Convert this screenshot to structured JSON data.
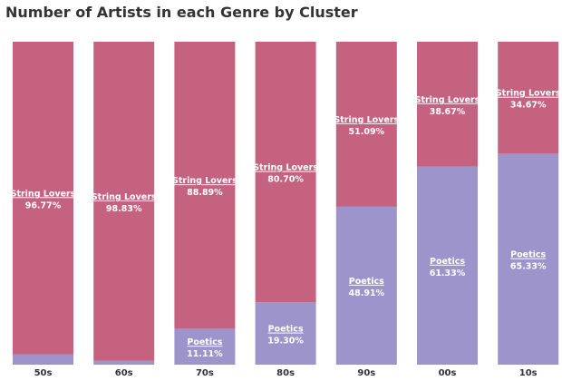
{
  "chart_data": {
    "type": "bar",
    "stacked": true,
    "normalized": true,
    "title": "Number of Artists in each Genre by Cluster",
    "xlabel": "",
    "ylabel": "",
    "ylim": [
      0,
      100
    ],
    "grid": false,
    "categories": [
      "50s",
      "60s",
      "70s",
      "80s",
      "90s",
      "00s",
      "10s"
    ],
    "series": [
      {
        "name": "Poetics",
        "color": "#9d94cb",
        "values": [
          3.23,
          1.17,
          11.11,
          19.3,
          48.91,
          61.33,
          65.33
        ],
        "labels": [
          "",
          "",
          "11.11%",
          "19.30%",
          "48.91%",
          "61.33%",
          "65.33%"
        ]
      },
      {
        "name": "String Lovers",
        "color": "#c4627f",
        "values": [
          96.77,
          98.83,
          88.89,
          80.7,
          51.09,
          38.67,
          34.67
        ],
        "labels": [
          "96.77%",
          "98.83%",
          "88.89%",
          "80.70%",
          "51.09%",
          "38.67%",
          "34.67%"
        ]
      }
    ]
  }
}
